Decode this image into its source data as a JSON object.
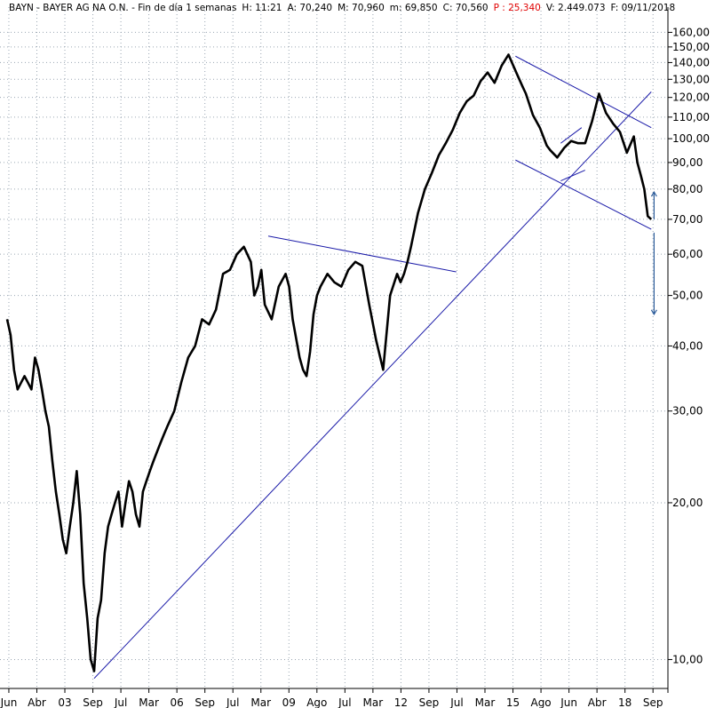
{
  "header": {
    "parts": [
      "BAYN - BAYER AG NA O.N. - Fin de día 1 semanas",
      "H: 11:21",
      "A: 70,240",
      "M: 70,960",
      "m: 69,850",
      "C: 70,560",
      "P : 25,340",
      "V: 2.449.073",
      "F: 09/11/2018"
    ]
  },
  "colors": {
    "price": "#000000",
    "trendline": "#1a1aa8",
    "arrow": "#2a5b9a",
    "grid": "#9aa6b2",
    "header_red": "#e00000"
  },
  "chart_data": {
    "type": "line",
    "title": "BAYN - BAYER AG NA O.N.",
    "scale": "log",
    "ylim": [
      8.8,
      172
    ],
    "grid": true,
    "y_ticks": [
      "160,00",
      "150,00",
      "140,00",
      "130,00",
      "120,00",
      "110,00",
      "100,00",
      "90,00",
      "80,00",
      "70,00",
      "60,00",
      "50,00",
      "40,00",
      "30,00",
      "20,00",
      "10,00"
    ],
    "x_ticks": [
      "Jun",
      "Abr",
      "03",
      "Sep",
      "Jul",
      "Mar",
      "06",
      "Sep",
      "Jul",
      "Mar",
      "09",
      "Ago",
      "Jul",
      "Mar",
      "12",
      "Sep",
      "Jul",
      "Mar",
      "15",
      "Ago",
      "Jun",
      "Abr",
      "18",
      "Sep"
    ],
    "series": [
      {
        "x": [
          2000.4,
          2000.5,
          2000.6,
          2000.7,
          2000.8,
          2000.9,
          2001.0,
          2001.1,
          2001.2,
          2001.3,
          2001.4,
          2001.5,
          2001.6,
          2001.7,
          2001.8,
          2001.9,
          2002.0,
          2002.1,
          2002.2,
          2002.3,
          2002.4,
          2002.5,
          2002.6,
          2002.7,
          2002.8,
          2002.9,
          2003.0,
          2003.1,
          2003.2,
          2003.3,
          2003.4,
          2003.5,
          2003.6,
          2003.7,
          2003.8,
          2003.9,
          2004.0,
          2004.1,
          2004.2,
          2004.3,
          2004.4,
          2004.5,
          2004.6,
          2004.7,
          2004.8,
          2004.9,
          2005.0,
          2005.2,
          2005.4,
          2005.6,
          2005.8,
          2006.0,
          2006.2,
          2006.4,
          2006.6,
          2006.8,
          2007.0,
          2007.2,
          2007.4,
          2007.5,
          2007.6,
          2007.7,
          2007.8,
          2008.0,
          2008.2,
          2008.4,
          2008.5,
          2008.6,
          2008.8,
          2008.9,
          2009.0,
          2009.1,
          2009.2,
          2009.3,
          2009.4,
          2009.6,
          2009.8,
          2010.0,
          2010.2,
          2010.4,
          2010.6,
          2010.8,
          2011.0,
          2011.2,
          2011.4,
          2011.6,
          2011.7,
          2011.8,
          2011.9,
          2012.0,
          2012.2,
          2012.4,
          2012.6,
          2012.8,
          2013.0,
          2013.2,
          2013.4,
          2013.6,
          2013.8,
          2014.0,
          2014.2,
          2014.4,
          2014.6,
          2014.8,
          2015.0,
          2015.2,
          2015.3,
          2015.5,
          2015.7,
          2015.9,
          2016.0,
          2016.2,
          2016.4,
          2016.6,
          2016.8,
          2017.0,
          2017.2,
          2017.4,
          2017.6,
          2017.8,
          2018.0,
          2018.2,
          2018.4,
          2018.5,
          2018.6,
          2018.7,
          2018.8,
          2018.9
        ],
        "values": [
          45,
          42,
          36,
          33,
          34,
          35,
          34,
          33,
          38,
          36,
          33,
          30,
          28,
          24,
          21,
          19,
          17,
          16,
          18,
          20,
          23,
          19,
          14,
          12,
          10,
          9.5,
          12,
          13,
          16,
          18,
          19,
          20,
          21,
          18,
          20,
          22,
          21,
          19,
          18,
          21,
          22,
          23,
          24,
          25,
          26,
          27,
          28,
          30,
          34,
          38,
          40,
          45,
          44,
          47,
          55,
          56,
          60,
          62,
          58,
          50,
          52,
          56,
          48,
          45,
          52,
          55,
          52,
          45,
          38,
          36,
          35,
          39,
          46,
          50,
          52,
          55,
          53,
          52,
          56,
          58,
          57,
          48,
          41,
          36,
          50,
          55,
          53,
          55,
          58,
          62,
          72,
          80,
          86,
          93,
          98,
          104,
          112,
          118,
          121,
          129,
          134,
          128,
          138,
          145,
          135,
          126,
          122,
          111,
          105,
          97,
          95,
          92,
          96,
          99,
          98,
          98,
          108,
          122,
          112,
          107,
          103,
          94,
          101,
          90,
          85,
          80,
          71,
          70
        ]
      }
    ],
    "trendlines": [
      {
        "from": [
          2002.9,
          9.2
        ],
        "to": [
          2018.9,
          123
        ]
      },
      {
        "from": [
          2007.9,
          65
        ],
        "to": [
          2013.3,
          55.5
        ]
      },
      {
        "from": [
          2015.0,
          144
        ],
        "to": [
          2018.9,
          105
        ]
      },
      {
        "from": [
          2015.0,
          91
        ],
        "to": [
          2018.9,
          67
        ]
      },
      {
        "from": [
          2016.3,
          98
        ],
        "to": [
          2016.9,
          105
        ]
      },
      {
        "from": [
          2016.3,
          83
        ],
        "to": [
          2017.0,
          87
        ]
      }
    ],
    "arrows": [
      {
        "x": 2018.98,
        "from": 70,
        "to": 79
      },
      {
        "x": 2018.98,
        "from": 66,
        "to": 46
      }
    ]
  }
}
